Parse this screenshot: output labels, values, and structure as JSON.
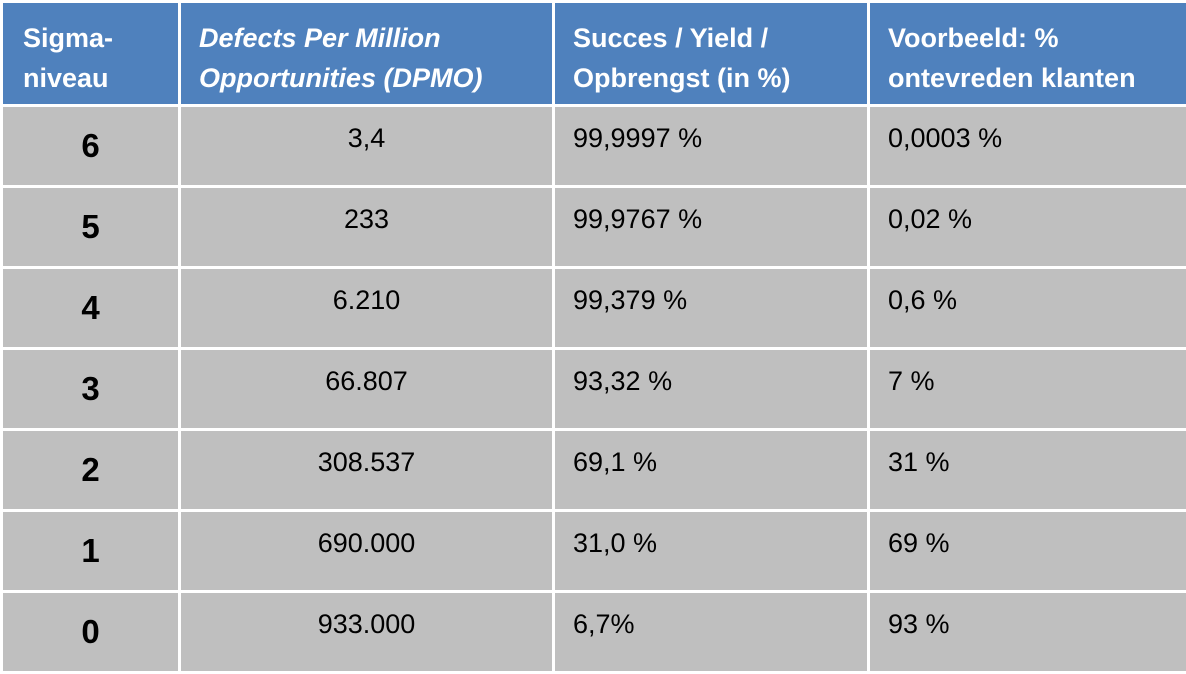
{
  "table": {
    "headers": {
      "sigma": "Sigma-\nniveau",
      "dpmo": "Defects Per Million Opportunities (DPMO)",
      "yield": "Succes / Yield / Opbrengst (in %)",
      "example": "Voorbeeld: % ontevreden klanten"
    },
    "rows": [
      {
        "level": "6",
        "dpmo": "3,4",
        "yield": "99,9997 %",
        "example": "0,0003 %"
      },
      {
        "level": "5",
        "dpmo": "233",
        "yield": "99,9767 %",
        "example": "0,02 %"
      },
      {
        "level": "4",
        "dpmo": "6.210",
        "yield": "99,379 %",
        "example": "0,6 %"
      },
      {
        "level": "3",
        "dpmo": "66.807",
        "yield": "93,32 %",
        "example": "7 %"
      },
      {
        "level": "2",
        "dpmo": "308.537",
        "yield": "69,1 %",
        "example": "31 %"
      },
      {
        "level": "1",
        "dpmo": "690.000",
        "yield": "31,0 %",
        "example": "69 %"
      },
      {
        "level": "0",
        "dpmo": "933.000",
        "yield": "6,7%",
        "example": "93 %"
      }
    ]
  },
  "colors": {
    "header_background": "#4f81bd",
    "header_text": "#ffffff",
    "cell_background": "#bfbfbf",
    "grid_lines": "#ffffff"
  }
}
